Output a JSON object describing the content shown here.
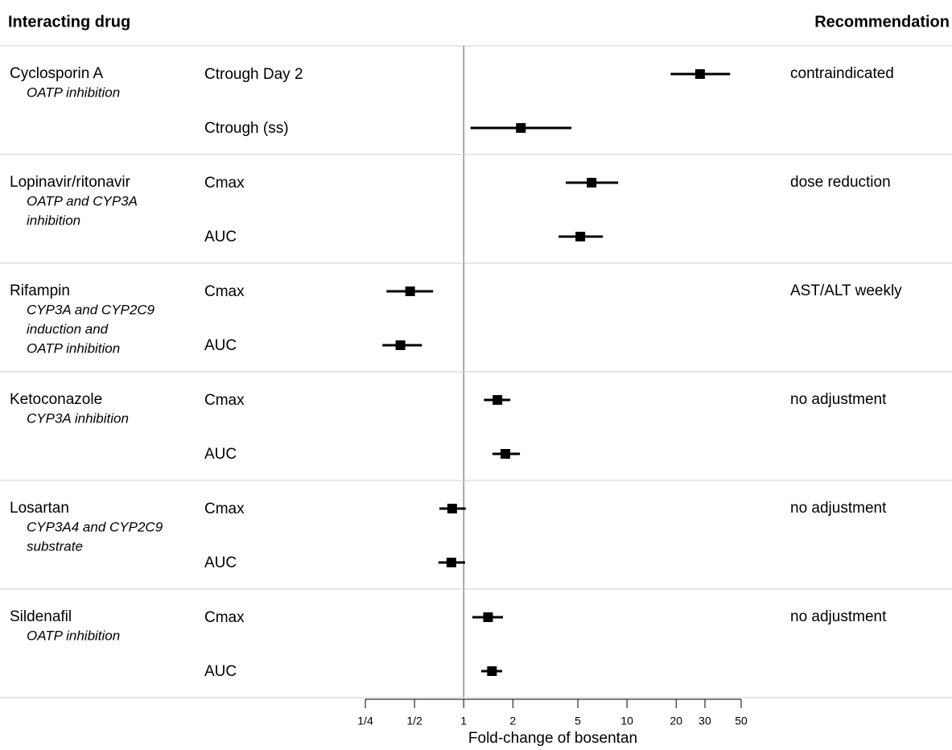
{
  "chart_data": {
    "type": "forest",
    "header_left": "Interacting drug",
    "header_right": "Recommendation",
    "xlabel": "Fold-change of bosentan",
    "log_scale": true,
    "xlim": [
      0.25,
      50
    ],
    "xticks": [
      {
        "value": 0.25,
        "label": "1/4"
      },
      {
        "value": 0.5,
        "label": "1/2"
      },
      1,
      2,
      5,
      10,
      20,
      30,
      50
    ],
    "reference": 1,
    "color": "#000000",
    "groups": [
      {
        "drug": "Cyclosporin A",
        "mechanism": [
          "OATP inhibition"
        ],
        "recommendation": "contraindicated",
        "measures": [
          {
            "name": "Ctrough Day 2",
            "value": 28,
            "lower": 18.5,
            "upper": 42.8
          },
          {
            "name": "Ctrough (ss)",
            "value": 2.24,
            "lower": 1.1,
            "upper": 4.57
          }
        ]
      },
      {
        "drug": "Lopinavir/ritonavir",
        "mechanism": [
          "OATP and CYP3A",
          "inhibition"
        ],
        "recommendation": "dose reduction",
        "measures": [
          {
            "name": "Cmax",
            "value": 6.07,
            "lower": 4.22,
            "upper": 8.83
          },
          {
            "name": "AUC",
            "value": 5.18,
            "lower": 3.81,
            "upper": 7.12
          }
        ]
      },
      {
        "drug": "Rifampin",
        "mechanism": [
          "CYP3A and CYP2C9",
          "induction and",
          "OATP inhibition"
        ],
        "recommendation": "AST/ALT weekly",
        "measures": [
          {
            "name": "Cmax",
            "value": 0.47,
            "lower": 0.337,
            "upper": 0.65
          },
          {
            "name": "AUC",
            "value": 0.41,
            "lower": 0.318,
            "upper": 0.555
          }
        ]
      },
      {
        "drug": "Ketoconazole",
        "mechanism": [
          "CYP3A inhibition"
        ],
        "recommendation": "no adjustment",
        "measures": [
          {
            "name": "Cmax",
            "value": 1.61,
            "lower": 1.33,
            "upper": 1.93
          },
          {
            "name": "AUC",
            "value": 1.8,
            "lower": 1.5,
            "upper": 2.21
          }
        ]
      },
      {
        "drug": "Losartan",
        "mechanism": [
          "CYP3A4 and CYP2C9",
          "substrate"
        ],
        "recommendation": "no adjustment",
        "measures": [
          {
            "name": "Cmax",
            "value": 0.85,
            "lower": 0.71,
            "upper": 1.03
          },
          {
            "name": "AUC",
            "value": 0.84,
            "lower": 0.7,
            "upper": 1.02
          }
        ]
      },
      {
        "drug": "Sildenafil",
        "mechanism": [
          "OATP inhibition"
        ],
        "recommendation": "no adjustment",
        "measures": [
          {
            "name": "Cmax",
            "value": 1.41,
            "lower": 1.13,
            "upper": 1.74
          },
          {
            "name": "AUC",
            "value": 1.49,
            "lower": 1.28,
            "upper": 1.72
          }
        ]
      }
    ]
  }
}
